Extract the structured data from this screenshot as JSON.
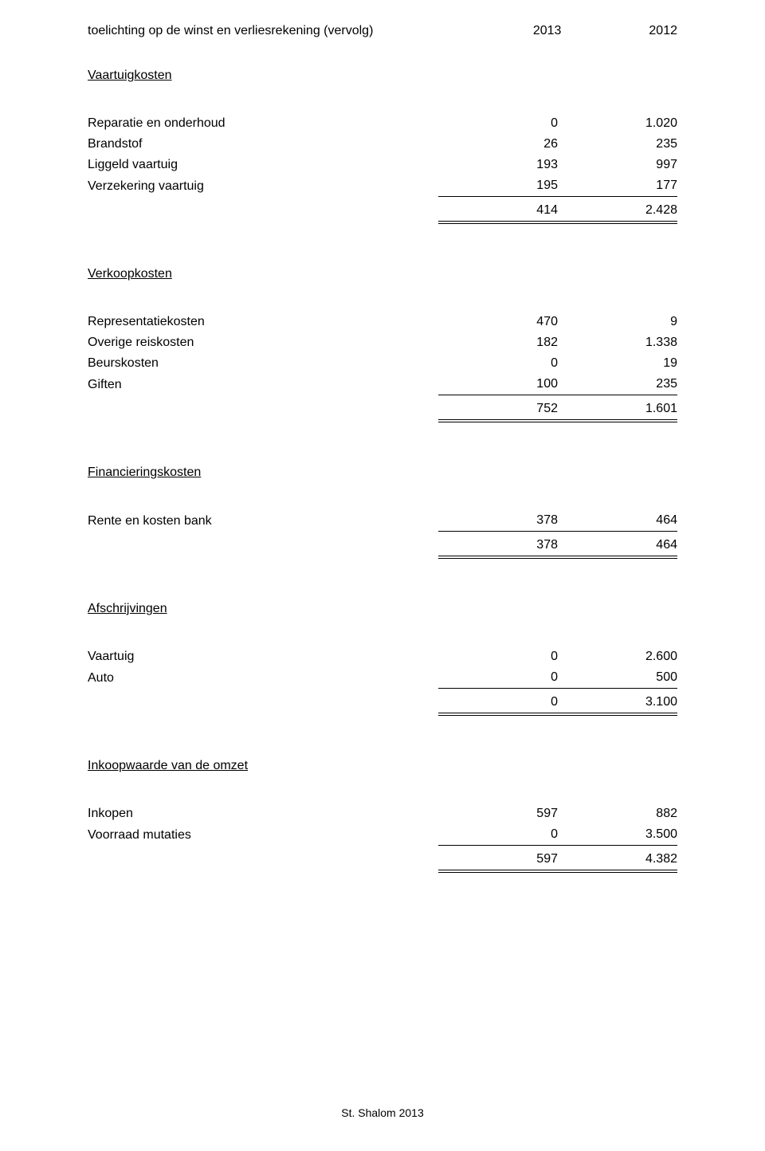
{
  "colors": {
    "background": "#ffffff",
    "text": "#000000",
    "rule": "#000000"
  },
  "typography": {
    "font_family": "Verdana, Geneva, sans-serif",
    "body_fontsize_pt": 12,
    "footer_fontsize_pt": 10
  },
  "header": {
    "title": "toelichting op de winst en verliesrekening (vervolg)",
    "year_current": "2013",
    "year_prior": "2012"
  },
  "sections": [
    {
      "heading": "Vaartuigkosten",
      "rows": [
        {
          "label": "Reparatie en onderhoud",
          "current": "0",
          "prior": "1.020"
        },
        {
          "label": "Brandstof",
          "current": "26",
          "prior": "235"
        },
        {
          "label": "Liggeld vaartuig",
          "current": "193",
          "prior": "997"
        },
        {
          "label": "Verzekering vaartuig",
          "current": "195",
          "prior": "177"
        }
      ],
      "total": {
        "current": "414",
        "prior": "2.428"
      }
    },
    {
      "heading": "Verkoopkosten",
      "rows": [
        {
          "label": "Representatiekosten",
          "current": "470",
          "prior": "9"
        },
        {
          "label": "Overige reiskosten",
          "current": "182",
          "prior": "1.338"
        },
        {
          "label": "Beurskosten",
          "current": "0",
          "prior": "19"
        },
        {
          "label": "Giften",
          "current": "100",
          "prior": "235"
        }
      ],
      "total": {
        "current": "752",
        "prior": "1.601"
      }
    },
    {
      "heading": "Financieringskosten",
      "rows": [
        {
          "label": "Rente en kosten bank",
          "current": "378",
          "prior": "464"
        }
      ],
      "total": {
        "current": "378",
        "prior": "464"
      }
    },
    {
      "heading": "Afschrijvingen",
      "rows": [
        {
          "label": "Vaartuig",
          "current": "0",
          "prior": "2.600"
        },
        {
          "label": "Auto",
          "current": "0",
          "prior": "500"
        }
      ],
      "total": {
        "current": "0",
        "prior": "3.100"
      }
    },
    {
      "heading": "Inkoopwaarde van de omzet",
      "rows": [
        {
          "label": "Inkopen",
          "current": "597",
          "prior": "882"
        },
        {
          "label": "Voorraad mutaties",
          "current": "0",
          "prior": "3.500"
        }
      ],
      "total": {
        "current": "597",
        "prior": "4.382"
      }
    }
  ],
  "footer": "St. Shalom 2013"
}
